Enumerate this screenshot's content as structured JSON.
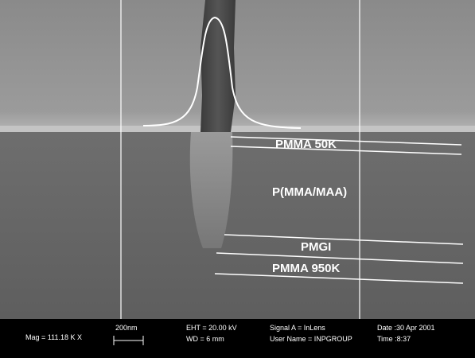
{
  "labels": {
    "layer_1": "PMMA 50K",
    "layer_2": "P(MMA/MAA)",
    "layer_3": "PMGI",
    "layer_4": "PMMA 950K"
  },
  "info_bar": {
    "magnification": "Mag = 111.18 K X",
    "scale": "200nm",
    "eht": "EHT = 20.00 kV",
    "wd": "WD =  6 mm",
    "signal": "Signal A = InLens",
    "user": "User Name = INPGROUP",
    "date": "Date :30 Apr 2001",
    "time": "Time :8:37"
  }
}
